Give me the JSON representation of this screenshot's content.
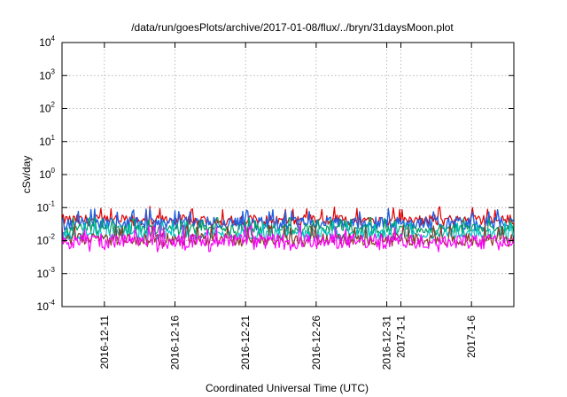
{
  "chart_data": {
    "type": "line",
    "title": "/data/run/goesPlots/archive/2017-01-08/flux/../bryn/31daysMoon.plot",
    "xlabel": "Coordinated Universal Time (UTC)",
    "ylabel": "cSv/day",
    "yscale": "log",
    "ylim": [
      0.0001,
      10000
    ],
    "y_ticks": [
      {
        "value": 0.0001,
        "base": "10",
        "exp": "-4"
      },
      {
        "value": 0.001,
        "base": "10",
        "exp": "-3"
      },
      {
        "value": 0.01,
        "base": "10",
        "exp": "-2"
      },
      {
        "value": 0.1,
        "base": "10",
        "exp": "-1"
      },
      {
        "value": 1,
        "base": "10",
        "exp": "0"
      },
      {
        "value": 10,
        "base": "10",
        "exp": "1"
      },
      {
        "value": 100,
        "base": "10",
        "exp": "2"
      },
      {
        "value": 1000,
        "base": "10",
        "exp": "3"
      },
      {
        "value": 10000,
        "base": "10",
        "exp": "4"
      }
    ],
    "xlim": [
      "2016-12-08",
      "2017-01-09"
    ],
    "x_ticks": [
      {
        "date": "2016-12-11",
        "label": "2016-12-11"
      },
      {
        "date": "2016-12-16",
        "label": "2016-12-16"
      },
      {
        "date": "2016-12-21",
        "label": "2016-12-21"
      },
      {
        "date": "2016-12-26",
        "label": "2016-12-26"
      },
      {
        "date": "2016-12-31",
        "label": "2016-12-31"
      },
      {
        "date": "2017-01-01",
        "label": "2017-1-1"
      },
      {
        "date": "2017-01-06",
        "label": "2017-1-6"
      }
    ],
    "grid": true,
    "legend": "none",
    "series": [
      {
        "color": "#e00000",
        "y_level": 0.042,
        "y_min": 0.028,
        "y_max": 0.11
      },
      {
        "color": "#2060e0",
        "y_level": 0.034,
        "y_min": 0.02,
        "y_max": 0.095
      },
      {
        "color": "#00a060",
        "y_level": 0.022,
        "y_min": 0.014,
        "y_max": 0.05
      },
      {
        "color": "#00c0c0",
        "y_level": 0.016,
        "y_min": 0.01,
        "y_max": 0.04
      },
      {
        "color": "#8b3a2a",
        "y_level": 0.011,
        "y_min": 0.0065,
        "y_max": 0.03
      },
      {
        "color": "#ff00ff",
        "y_level": 0.0095,
        "y_min": 0.0045,
        "y_max": 0.03
      }
    ]
  }
}
